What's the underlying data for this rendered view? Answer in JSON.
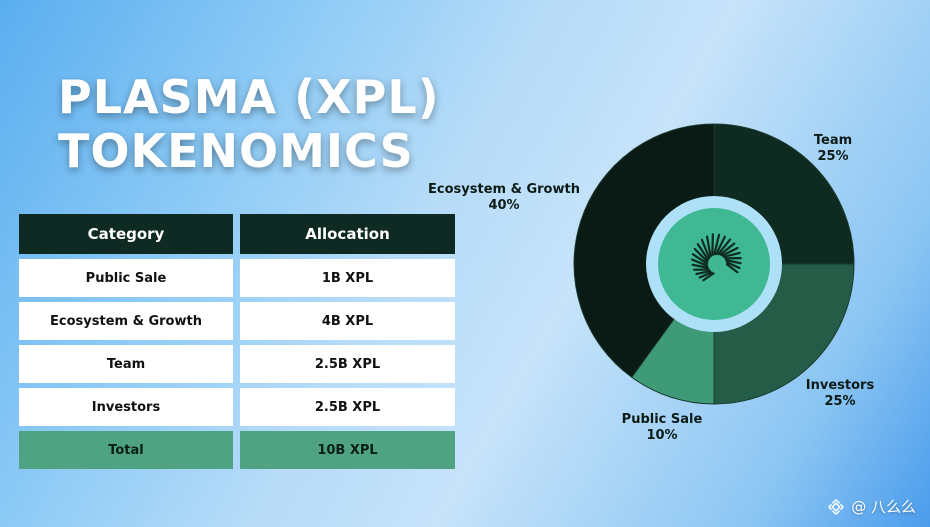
{
  "title": {
    "line1": "PLASMA (XPL)",
    "line2": "TOKENOMICS"
  },
  "table": {
    "headers": [
      "Category",
      "Allocation"
    ],
    "rows": [
      {
        "category": "Public Sale",
        "allocation": "1B XPL"
      },
      {
        "category": "Ecosystem & Growth",
        "allocation": "4B XPL"
      },
      {
        "category": "Team",
        "allocation": "2.5B XPL"
      },
      {
        "category": "Investors",
        "allocation": "2.5B XPL"
      }
    ],
    "total": {
      "category": "Total",
      "allocation": "10B XPL"
    }
  },
  "chart_data": {
    "type": "pie",
    "title": "",
    "slices": [
      {
        "label": "Team",
        "value": 25,
        "pct_label": "25%",
        "color": "#0e2a21"
      },
      {
        "label": "Investors",
        "value": 25,
        "pct_label": "25%",
        "color": "#245c48"
      },
      {
        "label": "Public Sale",
        "value": 10,
        "pct_label": "10%",
        "color": "#3f9a78"
      },
      {
        "label": "Ecosystem & Growth",
        "value": 40,
        "pct_label": "40%",
        "color": "#0a1a15"
      }
    ],
    "start_angle_deg": 0,
    "center_ring_color": "#aee0f7",
    "center_disk_color": "#3fb893"
  },
  "watermark": {
    "text": "@ 八么么"
  }
}
